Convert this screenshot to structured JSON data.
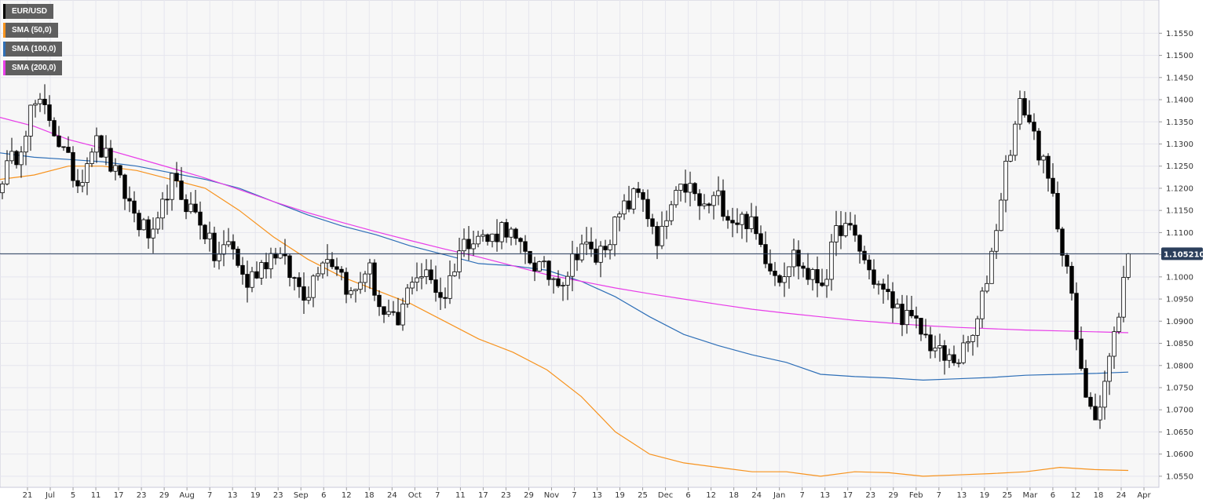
{
  "chart_data": {
    "type": "candlestick",
    "symbol": "EUR/USD",
    "last_price": "1.105210",
    "ylim": [
      1.0525,
      1.1625
    ],
    "y_ticks": [
      "1.0550",
      "1.0600",
      "1.0650",
      "1.0700",
      "1.0750",
      "1.0800",
      "1.0850",
      "1.0900",
      "1.0950",
      "1.1000",
      "1.1050",
      "1.1100",
      "1.1150",
      "1.1200",
      "1.1250",
      "1.1300",
      "1.1350",
      "1.1400",
      "1.1450",
      "1.1500",
      "1.1550"
    ],
    "x_ticks": [
      "21",
      "Jul",
      "5",
      "11",
      "17",
      "23",
      "29",
      "Aug",
      "7",
      "13",
      "19",
      "23",
      "Sep",
      "6",
      "12",
      "18",
      "24",
      "Oct",
      "7",
      "11",
      "17",
      "23",
      "29",
      "Nov",
      "7",
      "13",
      "19",
      "25",
      "Dec",
      "6",
      "12",
      "18",
      "24",
      "Jan",
      "7",
      "13",
      "17",
      "23",
      "29",
      "Feb",
      "7",
      "13",
      "19",
      "25",
      "Mar",
      "6",
      "12",
      "18",
      "24",
      "Apr"
    ],
    "legend": [
      {
        "label": "EUR/USD",
        "color": "#000000"
      },
      {
        "label": "SMA (50,0)",
        "color": "#f7931e"
      },
      {
        "label": "SMA (100,0)",
        "color": "#2e6fb7"
      },
      {
        "label": "SMA (200,0)",
        "color": "#e83de8"
      }
    ],
    "series": [
      {
        "name": "SMA (50,0)",
        "color": "#f7931e",
        "values": [
          1.122,
          1.123,
          1.125,
          1.125,
          1.124,
          1.122,
          1.12,
          1.115,
          1.109,
          1.104,
          1.1,
          1.097,
          1.094,
          1.09,
          1.086,
          1.083,
          1.079,
          1.073,
          1.065,
          1.06,
          1.058,
          1.057,
          1.056,
          1.056,
          1.055,
          1.056,
          1.0558,
          1.055,
          1.0553,
          1.0556,
          1.056,
          1.057,
          1.0565,
          1.0563
        ]
      },
      {
        "name": "SMA (100,0)",
        "color": "#2e6fb7",
        "values": [
          1.128,
          1.127,
          1.1265,
          1.126,
          1.125,
          1.1235,
          1.122,
          1.12,
          1.117,
          1.114,
          1.1115,
          1.1095,
          1.107,
          1.105,
          1.103,
          1.1025,
          1.1015,
          1.099,
          1.0955,
          1.091,
          1.087,
          1.0845,
          1.0824,
          1.0807,
          1.078,
          1.0775,
          1.0772,
          1.0767,
          1.077,
          1.0773,
          1.0778,
          1.078,
          1.0782,
          1.0785
        ]
      },
      {
        "name": "SMA (200,0)",
        "color": "#e83de8",
        "values": [
          1.136,
          1.134,
          1.131,
          1.129,
          1.1268,
          1.1246,
          1.1223,
          1.1197,
          1.117,
          1.1145,
          1.1123,
          1.1102,
          1.1082,
          1.1063,
          1.1045,
          1.1025,
          1.1005,
          1.099,
          1.0975,
          1.0962,
          1.095,
          1.0938,
          1.0927,
          1.0918,
          1.091,
          1.0902,
          1.0896,
          1.089,
          1.0886,
          1.0883,
          1.088,
          1.0878,
          1.0876,
          1.0874
        ]
      }
    ],
    "candle_path": [
      1.123,
      1.128,
      1.139,
      1.137,
      1.128,
      1.121,
      1.131,
      1.126,
      1.119,
      1.112,
      1.108,
      1.122,
      1.117,
      1.113,
      1.104,
      1.108,
      1.098,
      1.103,
      1.106,
      1.1,
      1.096,
      1.105,
      1.103,
      1.095,
      1.103,
      1.091,
      1.089,
      1.101,
      1.1,
      1.095,
      1.106,
      1.11,
      1.108,
      1.112,
      1.106,
      1.103,
      1.1,
      1.1,
      1.108,
      1.104,
      1.11,
      1.116,
      1.12,
      1.106,
      1.116,
      1.121,
      1.115,
      1.118,
      1.113,
      1.113,
      1.106,
      1.1,
      1.105,
      1.1,
      1.099,
      1.112,
      1.109,
      1.101,
      1.096,
      1.092,
      1.089,
      1.085,
      1.081,
      1.082,
      1.088,
      1.105,
      1.126,
      1.14,
      1.13,
      1.118,
      1.102,
      1.075,
      1.069,
      1.085,
      1.105
    ]
  }
}
